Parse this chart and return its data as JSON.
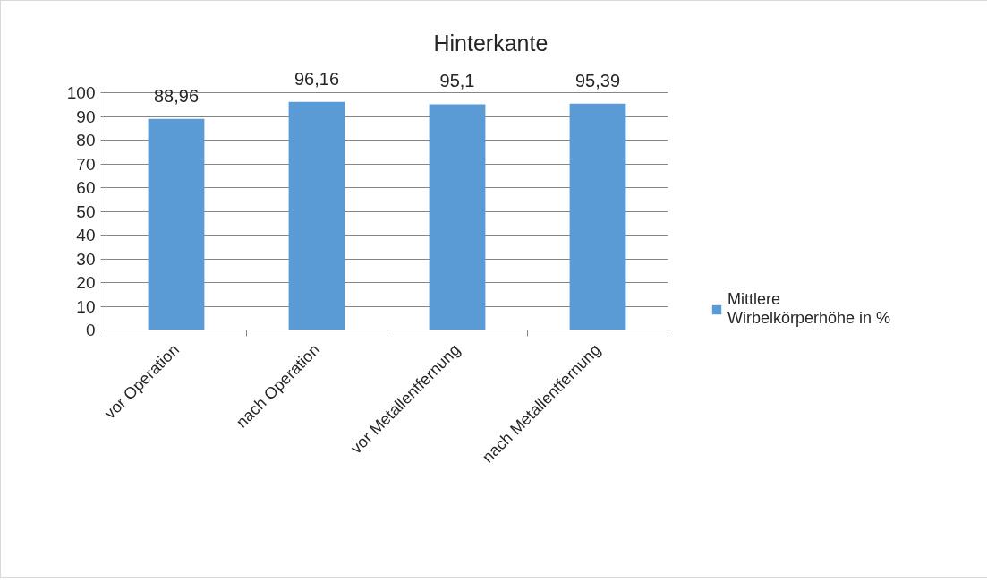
{
  "chart_data": {
    "type": "bar",
    "title": "Hinterkante",
    "categories": [
      "vor Operation",
      "nach Operation",
      "vor Metallentfernung",
      "nach Metallentfernung"
    ],
    "series": [
      {
        "name": "Mittlere Wirbelkörperhöhe in %",
        "color": "#5b9bd5",
        "values": [
          88.96,
          96.16,
          95.1,
          95.39
        ],
        "value_labels": [
          "88,96",
          "96,16",
          "95,1",
          "95,39"
        ]
      }
    ],
    "ylim": [
      0,
      100
    ],
    "yticks": [
      0,
      10,
      20,
      30,
      40,
      50,
      60,
      70,
      80,
      90,
      100
    ],
    "grid": "y",
    "legend": "right"
  }
}
